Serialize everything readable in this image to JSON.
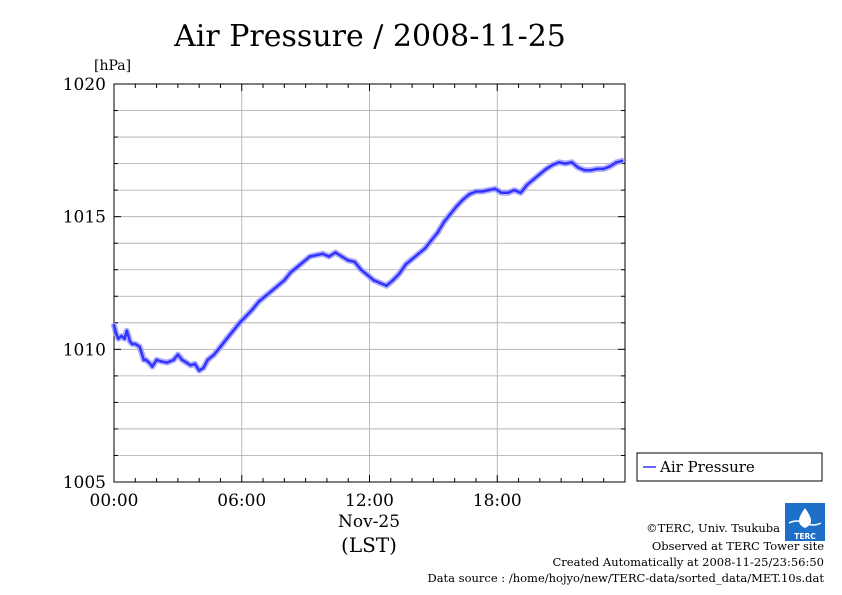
{
  "chart_data": {
    "type": "line",
    "title": "Air Pressure / 2008-11-25",
    "y_unit": "[hPa]",
    "ylim": [
      1005,
      1020
    ],
    "y_ticks": [
      "1020",
      "1015",
      "1010",
      "1005"
    ],
    "y_tick_values": [
      1020,
      1015,
      1010,
      1005
    ],
    "y_minor_step": 1,
    "xlim": [
      0,
      24
    ],
    "x_ticks": [
      "00:00",
      "06:00",
      "12:00",
      "18:00"
    ],
    "x_tick_values": [
      0,
      6,
      12,
      18
    ],
    "x_date_label": "Nov-25",
    "xlabel": "(LST)",
    "legend_position": "right-bottom",
    "series": [
      {
        "name": "Air Pressure",
        "color": "#3333ff",
        "x": [
          0.0,
          0.1,
          0.2,
          0.35,
          0.5,
          0.6,
          0.75,
          0.85,
          1.0,
          1.2,
          1.4,
          1.5,
          1.65,
          1.8,
          2.0,
          2.2,
          2.5,
          2.8,
          3.0,
          3.2,
          3.4,
          3.6,
          3.8,
          4.0,
          4.2,
          4.4,
          4.7,
          5.0,
          5.3,
          5.6,
          5.9,
          6.2,
          6.5,
          6.8,
          7.1,
          7.4,
          7.7,
          8.0,
          8.3,
          8.6,
          8.9,
          9.2,
          9.5,
          9.8,
          10.1,
          10.4,
          10.7,
          11.0,
          11.3,
          11.6,
          11.9,
          12.2,
          12.5,
          12.8,
          13.1,
          13.4,
          13.7,
          14.0,
          14.3,
          14.6,
          14.9,
          15.2,
          15.5,
          15.8,
          16.1,
          16.4,
          16.7,
          17.0,
          17.3,
          17.6,
          17.9,
          18.2,
          18.5,
          18.8,
          19.1,
          19.4,
          19.7,
          20.0,
          20.3,
          20.6,
          20.9,
          21.2,
          21.5,
          21.8,
          22.1,
          22.4,
          22.7,
          23.0,
          23.3,
          23.6,
          23.85
        ],
        "y": [
          1010.9,
          1010.6,
          1010.4,
          1010.5,
          1010.4,
          1010.7,
          1010.3,
          1010.2,
          1010.2,
          1010.1,
          1009.6,
          1009.6,
          1009.5,
          1009.35,
          1009.6,
          1009.55,
          1009.5,
          1009.6,
          1009.8,
          1009.6,
          1009.5,
          1009.4,
          1009.45,
          1009.2,
          1009.3,
          1009.6,
          1009.8,
          1010.1,
          1010.4,
          1010.7,
          1011.0,
          1011.25,
          1011.5,
          1011.8,
          1012.0,
          1012.2,
          1012.4,
          1012.6,
          1012.9,
          1013.1,
          1013.3,
          1013.5,
          1013.55,
          1013.6,
          1013.5,
          1013.65,
          1013.5,
          1013.35,
          1013.3,
          1013.0,
          1012.8,
          1012.6,
          1012.5,
          1012.4,
          1012.6,
          1012.85,
          1013.2,
          1013.4,
          1013.6,
          1013.8,
          1014.1,
          1014.4,
          1014.8,
          1015.1,
          1015.4,
          1015.65,
          1015.85,
          1015.95,
          1015.95,
          1016.0,
          1016.05,
          1015.9,
          1015.9,
          1016.0,
          1015.9,
          1016.2,
          1016.4,
          1016.6,
          1016.8,
          1016.95,
          1017.05,
          1017.0,
          1017.05,
          1016.85,
          1016.75,
          1016.75,
          1016.8,
          1016.8,
          1016.9,
          1017.05,
          1017.1
        ]
      }
    ]
  },
  "footer": {
    "copyright": "©TERC, Univ. Tsukuba",
    "site": "Observed at TERC Tower site",
    "created": "Created Automatically at 2008-11-25/23:56:50",
    "source": "Data source : /home/hojyo/new/TERC-data/sorted_data/MET.10s.dat",
    "logo_text": "TERC"
  }
}
